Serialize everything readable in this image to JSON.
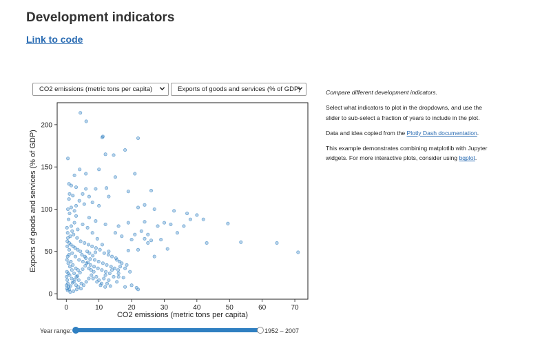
{
  "header": {
    "title": "Development indicators",
    "code_link": "Link to code"
  },
  "controls": {
    "x_indicator": "CO2 emissions (metric tons per capita)",
    "y_indicator": "Exports of goods and services (% of GDP)",
    "year_range_label": "Year range:",
    "year_range_value": "1952 – 2007",
    "year_range_min": 1952,
    "year_range_max": 2007
  },
  "sidebar": {
    "lead": "Compare different development indicators.",
    "p1": "Select what indicators to plot in the dropdowns, and use the slider to sub-select a fraction of years to include in the plot.",
    "p2_prefix": "Data and idea copied from the ",
    "p2_link": "Plotly Dash documentation",
    "p2_suffix": ".",
    "p3_prefix": "This example demonstrates combining matplotlib with Jupyter widgets. For more interactive plots, consider using ",
    "p3_link": "bqplot",
    "p3_suffix": "."
  },
  "chart_data": {
    "type": "scatter",
    "xlabel": "CO2 emissions (metric tons per capita)",
    "ylabel": "Exports of goods and services (% of GDP)",
    "xlim": [
      -2.8,
      74
    ],
    "ylim": [
      -6.5,
      226
    ],
    "xticks": [
      0,
      10,
      20,
      30,
      40,
      50,
      60,
      70
    ],
    "yticks": [
      0,
      50,
      100,
      150,
      200
    ],
    "marker_color": "#2f7fc1",
    "grid": false,
    "points": [
      [
        4.3,
        214
      ],
      [
        6.1,
        204
      ],
      [
        11.2,
        186
      ],
      [
        11.0,
        185
      ],
      [
        22.0,
        184
      ],
      [
        0.5,
        160
      ],
      [
        12.0,
        165
      ],
      [
        18.0,
        170
      ],
      [
        14.5,
        164
      ],
      [
        4.1,
        147
      ],
      [
        10.0,
        147
      ],
      [
        6.0,
        142
      ],
      [
        21.0,
        142
      ],
      [
        2.5,
        140
      ],
      [
        15.0,
        138
      ],
      [
        0.8,
        130
      ],
      [
        1.5,
        128
      ],
      [
        3.0,
        126
      ],
      [
        6.0,
        124
      ],
      [
        9.0,
        124
      ],
      [
        12.3,
        125
      ],
      [
        26.0,
        122
      ],
      [
        19.0,
        121
      ],
      [
        1.0,
        118
      ],
      [
        5.0,
        118
      ],
      [
        2.0,
        116
      ],
      [
        7.0,
        115
      ],
      [
        13.0,
        115
      ],
      [
        4.0,
        110
      ],
      [
        8.0,
        108
      ],
      [
        0.8,
        112
      ],
      [
        3.0,
        104
      ],
      [
        5.5,
        106
      ],
      [
        10.0,
        104
      ],
      [
        22.0,
        102
      ],
      [
        24.0,
        105
      ],
      [
        27.0,
        100
      ],
      [
        33.0,
        98
      ],
      [
        37.0,
        95
      ],
      [
        40.0,
        93
      ],
      [
        38.0,
        88
      ],
      [
        42.0,
        88
      ],
      [
        49.5,
        83
      ],
      [
        30.0,
        84
      ],
      [
        24.0,
        85
      ],
      [
        19.0,
        84
      ],
      [
        16.0,
        80
      ],
      [
        12.0,
        82
      ],
      [
        9.0,
        86
      ],
      [
        7.0,
        90
      ],
      [
        3.0,
        92
      ],
      [
        1.0,
        95
      ],
      [
        28.0,
        80
      ],
      [
        32.0,
        82
      ],
      [
        36.0,
        80
      ],
      [
        23.0,
        74
      ],
      [
        21.0,
        70
      ],
      [
        25.0,
        70
      ],
      [
        17.0,
        68
      ],
      [
        15.0,
        72
      ],
      [
        34.0,
        72
      ],
      [
        29.0,
        64
      ],
      [
        25.0,
        60
      ],
      [
        24.0,
        65
      ],
      [
        26.0,
        63
      ],
      [
        20.0,
        64
      ],
      [
        43.0,
        60
      ],
      [
        53.5,
        61
      ],
      [
        64.5,
        60
      ],
      [
        71.0,
        49
      ],
      [
        22.0,
        52
      ],
      [
        31.0,
        53
      ],
      [
        19.0,
        51
      ],
      [
        27.0,
        44
      ],
      [
        15.5,
        40
      ],
      [
        16.0,
        20
      ],
      [
        17.5,
        19
      ],
      [
        12.5,
        12
      ],
      [
        13.5,
        9
      ],
      [
        18.0,
        8
      ],
      [
        21.5,
        7
      ],
      [
        22.0,
        5
      ],
      [
        20.0,
        10
      ],
      [
        14.0,
        28
      ],
      [
        16.5,
        32
      ],
      [
        18.5,
        34
      ],
      [
        13.0,
        50
      ],
      [
        11.0,
        58
      ],
      [
        9.5,
        65
      ],
      [
        8.0,
        72
      ],
      [
        6.5,
        78
      ],
      [
        5.0,
        82
      ],
      [
        3.5,
        76
      ],
      [
        2.5,
        84
      ],
      [
        1.5,
        80
      ],
      [
        0.7,
        88
      ],
      [
        0.4,
        72
      ],
      [
        1.2,
        68
      ],
      [
        2.2,
        70
      ],
      [
        3.3,
        66
      ],
      [
        4.4,
        62
      ],
      [
        5.6,
        60
      ],
      [
        6.8,
        58
      ],
      [
        7.9,
        56
      ],
      [
        9.1,
        54
      ],
      [
        10.3,
        52
      ],
      [
        11.6,
        48
      ],
      [
        12.9,
        46
      ],
      [
        14.0,
        44
      ],
      [
        15.2,
        42
      ],
      [
        16.3,
        38
      ],
      [
        0.3,
        56
      ],
      [
        0.9,
        52
      ],
      [
        1.8,
        48
      ],
      [
        2.8,
        44
      ],
      [
        3.9,
        40
      ],
      [
        5.1,
        38
      ],
      [
        6.2,
        36
      ],
      [
        7.4,
        34
      ],
      [
        8.5,
        32
      ],
      [
        9.7,
        30
      ],
      [
        10.9,
        28
      ],
      [
        12.1,
        26
      ],
      [
        13.3,
        24
      ],
      [
        0.2,
        40
      ],
      [
        0.6,
        36
      ],
      [
        1.1,
        32
      ],
      [
        1.7,
        28
      ],
      [
        2.4,
        24
      ],
      [
        3.1,
        20
      ],
      [
        3.8,
        16
      ],
      [
        4.6,
        12
      ],
      [
        5.3,
        10
      ],
      [
        6.1,
        14
      ],
      [
        6.9,
        18
      ],
      [
        7.7,
        22
      ],
      [
        8.4,
        26
      ],
      [
        9.2,
        20
      ],
      [
        10.0,
        16
      ],
      [
        10.8,
        12
      ],
      [
        11.5,
        18
      ],
      [
        0.1,
        20
      ],
      [
        0.3,
        16
      ],
      [
        0.5,
        12
      ],
      [
        0.7,
        8
      ],
      [
        0.9,
        5
      ],
      [
        1.3,
        9
      ],
      [
        1.9,
        13
      ],
      [
        2.6,
        17
      ],
      [
        3.4,
        21
      ],
      [
        4.2,
        25
      ],
      [
        5.0,
        29
      ],
      [
        5.8,
        33
      ],
      [
        6.6,
        37
      ],
      [
        7.3,
        41
      ],
      [
        8.1,
        45
      ],
      [
        8.9,
        49
      ],
      [
        0.4,
        44
      ],
      [
        0.8,
        46
      ],
      [
        1.4,
        38
      ],
      [
        2.0,
        34
      ],
      [
        2.9,
        30
      ],
      [
        3.6,
        28
      ],
      [
        4.8,
        46
      ],
      [
        6.4,
        50
      ],
      [
        7.1,
        48
      ],
      [
        8.7,
        40
      ],
      [
        9.9,
        38
      ],
      [
        11.2,
        36
      ],
      [
        12.4,
        34
      ],
      [
        13.7,
        32
      ],
      [
        14.8,
        30
      ],
      [
        15.9,
        28
      ],
      [
        0.2,
        26
      ],
      [
        0.6,
        24
      ],
      [
        1.0,
        22
      ],
      [
        1.6,
        18
      ],
      [
        2.3,
        14
      ],
      [
        3.0,
        10
      ],
      [
        3.7,
        8
      ],
      [
        4.5,
        6
      ],
      [
        0.3,
        62
      ],
      [
        0.5,
        66
      ],
      [
        0.9,
        60
      ],
      [
        1.4,
        58
      ],
      [
        2.1,
        56
      ],
      [
        2.7,
        54
      ],
      [
        3.5,
        52
      ],
      [
        4.3,
        50
      ],
      [
        5.7,
        44
      ],
      [
        6.0,
        42
      ],
      [
        6.9,
        30
      ],
      [
        7.6,
        28
      ],
      [
        8.2,
        18
      ],
      [
        9.4,
        14
      ],
      [
        10.5,
        10
      ],
      [
        11.9,
        8
      ],
      [
        0.1,
        10
      ],
      [
        0.2,
        6
      ],
      [
        0.4,
        4
      ],
      [
        1.2,
        2
      ],
      [
        2.2,
        3
      ],
      [
        3.2,
        5
      ],
      [
        17.0,
        36
      ],
      [
        18.0,
        30
      ],
      [
        16.0,
        24
      ],
      [
        19.5,
        26
      ],
      [
        14.5,
        20
      ],
      [
        13.0,
        16
      ],
      [
        12.0,
        22
      ],
      [
        15.5,
        14
      ],
      [
        0.5,
        100
      ],
      [
        1.5,
        102
      ],
      [
        2.5,
        98
      ],
      [
        0.2,
        78
      ],
      [
        1.8,
        74
      ]
    ]
  }
}
